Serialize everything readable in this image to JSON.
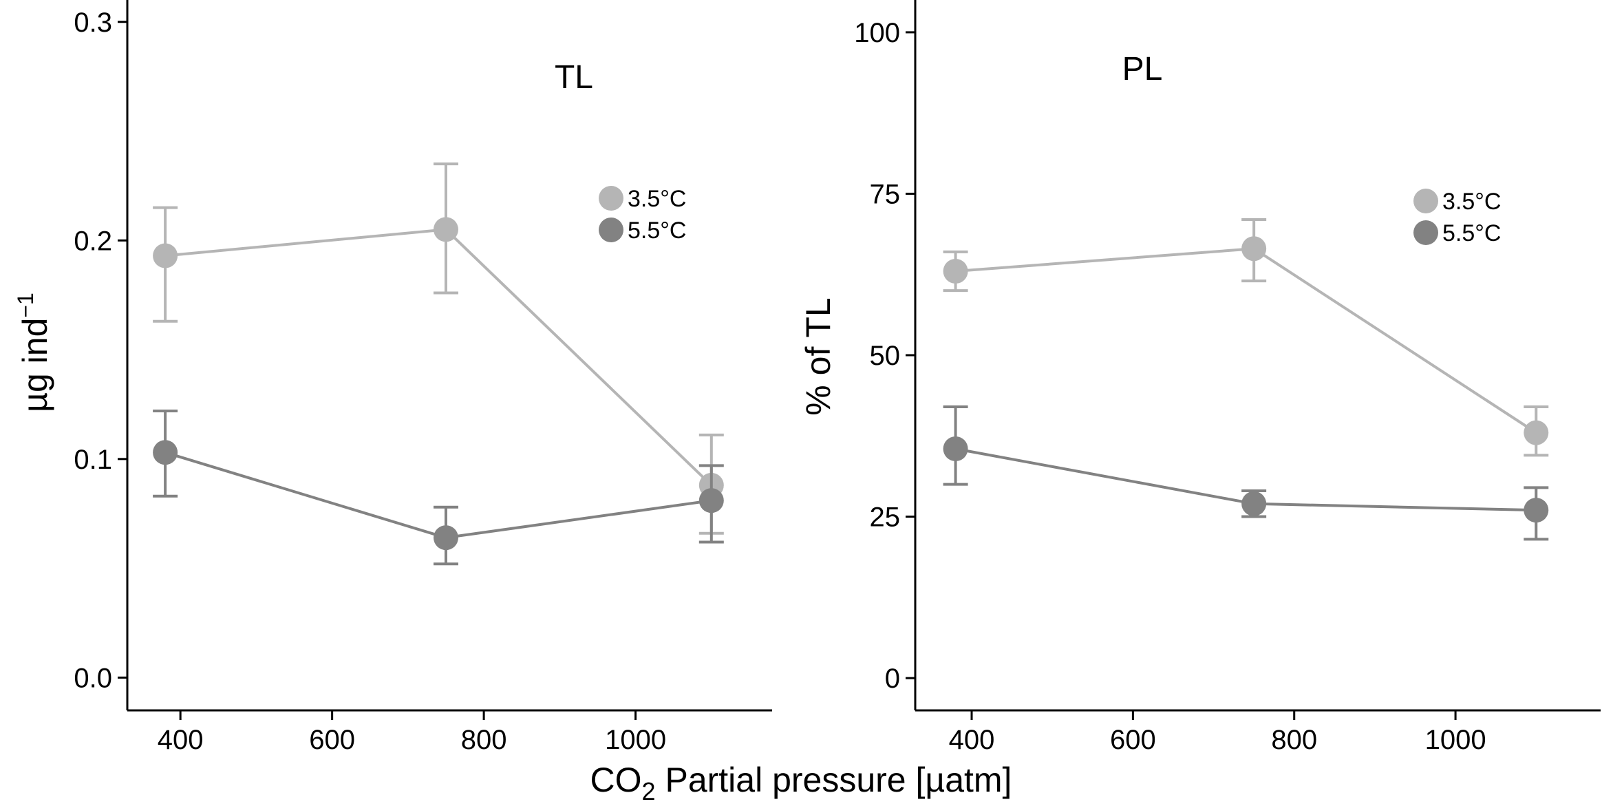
{
  "chart_data": [
    {
      "type": "line",
      "title": "TL",
      "ylabel": "µg ind",
      "ylabel_superscript": "−1",
      "xlim": [
        330,
        1180
      ],
      "ylim": [
        -0.015,
        0.31
      ],
      "xticks": [
        400,
        600,
        800,
        1000
      ],
      "yticks": [
        0.0,
        0.1,
        0.2,
        0.3
      ],
      "ytick_labels": [
        "0.0",
        "0.1",
        "0.2",
        "0.3"
      ],
      "legend_position": "top-right",
      "series": [
        {
          "name": "3.5°C",
          "color": "#b5b5b5",
          "x": [
            380,
            750,
            1100
          ],
          "y": [
            0.193,
            0.205,
            0.088
          ],
          "err_low": [
            0.163,
            0.176,
            0.066
          ],
          "err_high": [
            0.215,
            0.235,
            0.111
          ]
        },
        {
          "name": "5.5°C",
          "color": "#828282",
          "x": [
            380,
            750,
            1100
          ],
          "y": [
            0.103,
            0.064,
            0.081
          ],
          "err_low": [
            0.083,
            0.052,
            0.062
          ],
          "err_high": [
            0.122,
            0.078,
            0.097
          ]
        }
      ]
    },
    {
      "type": "line",
      "title": "PL",
      "ylabel": "% of TL",
      "ylabel_superscript": "",
      "xlim": [
        330,
        1180
      ],
      "ylim": [
        -5,
        105
      ],
      "xticks": [
        400,
        600,
        800,
        1000
      ],
      "yticks": [
        0,
        25,
        50,
        75,
        100
      ],
      "ytick_labels": [
        "0",
        "25",
        "50",
        "75",
        "100"
      ],
      "legend_position": "top-right",
      "series": [
        {
          "name": "3.5°C",
          "color": "#b5b5b5",
          "x": [
            380,
            750,
            1100
          ],
          "y": [
            63,
            66.5,
            38
          ],
          "err_low": [
            60,
            61.5,
            34.5
          ],
          "err_high": [
            66,
            71,
            42
          ]
        },
        {
          "name": "5.5°C",
          "color": "#828282",
          "x": [
            380,
            750,
            1100
          ],
          "y": [
            35.5,
            27,
            26
          ],
          "err_low": [
            30,
            25,
            21.5
          ],
          "err_high": [
            42,
            29,
            29.5
          ]
        }
      ]
    }
  ],
  "shared_xlabel": {
    "prefix": "CO",
    "subscript": "2",
    "suffix": " Partial pressure [µatm]"
  },
  "colors": {
    "axis": "#000000",
    "series_light": "#b5b5b5",
    "series_dark": "#828282"
  }
}
